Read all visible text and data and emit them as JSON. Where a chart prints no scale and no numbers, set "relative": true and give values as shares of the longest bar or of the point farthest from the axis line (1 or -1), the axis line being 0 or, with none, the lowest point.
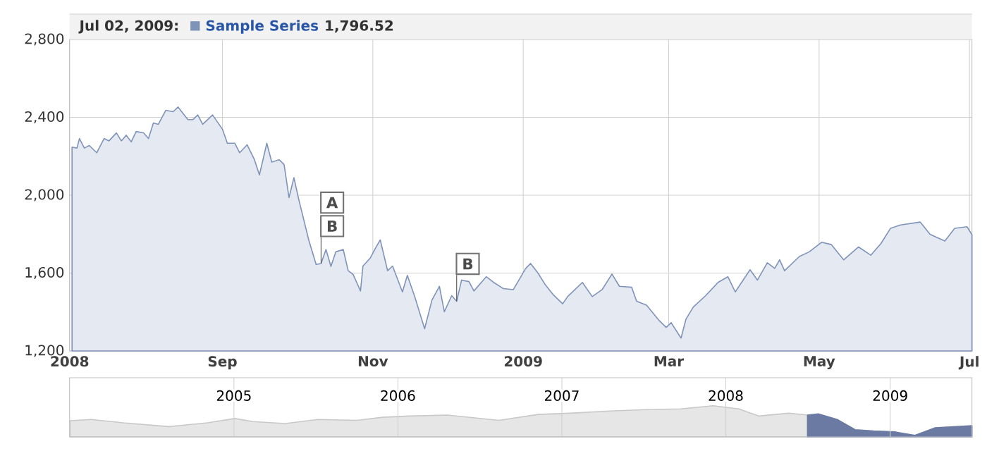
{
  "chart_data": [
    {
      "type": "area",
      "x": [
        "2008-07-02",
        "2008-07-04",
        "2008-07-05",
        "2008-07-07",
        "2008-07-09",
        "2008-07-12",
        "2008-07-15",
        "2008-07-17",
        "2008-07-20",
        "2008-07-22",
        "2008-07-24",
        "2008-07-26",
        "2008-07-28",
        "2008-07-31",
        "2008-08-02",
        "2008-08-04",
        "2008-08-06",
        "2008-08-09",
        "2008-08-12",
        "2008-08-14",
        "2008-08-18",
        "2008-08-20",
        "2008-08-22",
        "2008-08-24",
        "2008-08-28",
        "2008-09-01",
        "2008-09-03",
        "2008-09-06",
        "2008-09-08",
        "2008-09-11",
        "2008-09-14",
        "2008-09-16",
        "2008-09-19",
        "2008-09-21",
        "2008-09-24",
        "2008-09-26",
        "2008-09-28",
        "2008-09-30",
        "2008-10-02",
        "2008-10-06",
        "2008-10-09",
        "2008-10-11",
        "2008-10-13",
        "2008-10-15",
        "2008-10-17",
        "2008-10-20",
        "2008-10-22",
        "2008-10-24",
        "2008-10-27",
        "2008-10-28",
        "2008-10-31",
        "2008-11-02",
        "2008-11-04",
        "2008-11-07",
        "2008-11-09",
        "2008-11-13",
        "2008-11-15",
        "2008-11-18",
        "2008-11-22",
        "2008-11-25",
        "2008-11-28",
        "2008-11-30",
        "2008-12-03",
        "2008-12-05",
        "2008-12-07",
        "2008-12-10",
        "2008-12-12",
        "2008-12-17",
        "2008-12-20",
        "2008-12-24",
        "2008-12-28",
        "2009-01-02",
        "2009-01-04",
        "2009-01-07",
        "2009-01-10",
        "2009-01-13",
        "2009-01-17",
        "2009-01-19",
        "2009-01-25",
        "2009-01-29",
        "2009-02-02",
        "2009-02-06",
        "2009-02-09",
        "2009-02-14",
        "2009-02-16",
        "2009-02-20",
        "2009-02-25",
        "2009-02-28",
        "2009-03-02",
        "2009-03-06",
        "2009-03-08",
        "2009-03-11",
        "2009-03-16",
        "2009-03-21",
        "2009-03-25",
        "2009-03-28",
        "2009-04-03",
        "2009-04-06",
        "2009-04-10",
        "2009-04-13",
        "2009-04-15",
        "2009-04-17",
        "2009-04-23",
        "2009-04-27",
        "2009-05-02",
        "2009-05-06",
        "2009-05-11",
        "2009-05-17",
        "2009-05-22",
        "2009-05-26",
        "2009-05-30",
        "2009-06-03",
        "2009-06-11",
        "2009-06-15",
        "2009-06-21",
        "2009-06-25",
        "2009-06-30",
        "2009-07-02"
      ],
      "series": [
        {
          "name": "Sample Series",
          "color": "#7f93b9",
          "values": [
            2247,
            2242,
            2291,
            2242,
            2255,
            2218,
            2291,
            2279,
            2320,
            2279,
            2308,
            2274,
            2327,
            2320,
            2291,
            2371,
            2364,
            2436,
            2429,
            2453,
            2388,
            2388,
            2412,
            2364,
            2412,
            2339,
            2267,
            2267,
            2218,
            2259,
            2182,
            2104,
            2267,
            2170,
            2182,
            2158,
            1988,
            2090,
            1976,
            1770,
            1644,
            1649,
            1721,
            1634,
            1709,
            1721,
            1612,
            1593,
            1508,
            1636,
            1678,
            1726,
            1770,
            1612,
            1636,
            1503,
            1588,
            1479,
            1314,
            1462,
            1532,
            1401,
            1484,
            1455,
            1564,
            1556,
            1508,
            1581,
            1552,
            1520,
            1515,
            1624,
            1649,
            1600,
            1539,
            1491,
            1442,
            1479,
            1552,
            1479,
            1515,
            1595,
            1532,
            1527,
            1455,
            1435,
            1358,
            1321,
            1345,
            1266,
            1363,
            1426,
            1484,
            1552,
            1581,
            1503,
            1617,
            1564,
            1653,
            1624,
            1668,
            1612,
            1685,
            1709,
            1758,
            1746,
            1668,
            1734,
            1692,
            1750,
            1830,
            1847,
            1862,
            1799,
            1765,
            1830,
            1838,
            1797
          ]
        }
      ],
      "xlim": [
        "2008-07-01",
        "2009-07-02"
      ],
      "xticks": [
        {
          "value": "2008-07-01",
          "label": "2008"
        },
        {
          "value": "2008-09-01",
          "label": "Sep"
        },
        {
          "value": "2008-11-01",
          "label": "Nov"
        },
        {
          "value": "2009-01-01",
          "label": "2009"
        },
        {
          "value": "2009-03-01",
          "label": "Mar"
        },
        {
          "value": "2009-05-01",
          "label": "May"
        },
        {
          "value": "2009-07-01",
          "label": "Jul"
        }
      ],
      "ylim": [
        1200,
        2800
      ],
      "yticks": [
        {
          "value": 1200,
          "label": "1,200"
        },
        {
          "value": 1600,
          "label": "1,600"
        },
        {
          "value": 2000,
          "label": "2,000"
        },
        {
          "value": 2400,
          "label": "2,400"
        },
        {
          "value": 2800,
          "label": "2,800"
        }
      ],
      "grid": true,
      "legend": "top left",
      "annotations": [
        "Jul 02, 2009:",
        "1,796.52",
        {
          "text": "B",
          "x": "2008-10-11",
          "y": 1649
        },
        "A",
        {
          "text": "B",
          "x": "2008-12-05",
          "y": 1455
        }
      ]
    },
    {
      "type": "area",
      "relative": true,
      "series": [
        {
          "color": "#c8c8c8",
          "x": [
            "2004-01-02",
            "2004-02-18",
            "2004-04-30",
            "2004-08-09",
            "2004-11-03",
            "2005-01-03",
            "2005-02-12",
            "2005-04-25",
            "2005-07-07",
            "2005-10-01",
            "2005-11-28",
            "2006-01-25",
            "2006-04-21",
            "2006-08-14",
            "2006-11-09",
            "2007-01-20",
            "2007-04-17",
            "2007-06-28",
            "2007-09-22",
            "2007-12-04",
            "2008-01-30",
            "2008-03-14",
            "2008-05-20",
            "2008-07-01"
          ],
          "values": [
            0.52,
            0.56,
            0.45,
            0.33,
            0.45,
            0.59,
            0.49,
            0.43,
            0.56,
            0.53,
            0.63,
            0.67,
            0.7,
            0.53,
            0.72,
            0.76,
            0.83,
            0.87,
            0.9,
            1.0,
            0.9,
            0.67,
            0.76,
            0.7
          ]
        },
        {
          "color": "#6b7aa3",
          "x": [
            "2008-07-01",
            "2008-07-25",
            "2008-09-05",
            "2008-10-15",
            "2008-11-25",
            "2009-01-12",
            "2009-02-25",
            "2009-04-10",
            "2009-07-02"
          ],
          "values": [
            0.7,
            0.74,
            0.56,
            0.23,
            0.19,
            0.16,
            0.05,
            0.29,
            0.36
          ]
        }
      ],
      "xlim": [
        "2004-01-01",
        "2009-07-02"
      ],
      "xticks": [
        {
          "value": "2005-01-01",
          "label": "2005"
        },
        {
          "value": "2006-01-01",
          "label": "2006"
        },
        {
          "value": "2007-01-01",
          "label": "2007"
        },
        {
          "value": "2008-01-01",
          "label": "2008"
        },
        {
          "value": "2009-01-01",
          "label": "2009"
        }
      ],
      "grid": "x",
      "tick_labels": "x"
    }
  ]
}
